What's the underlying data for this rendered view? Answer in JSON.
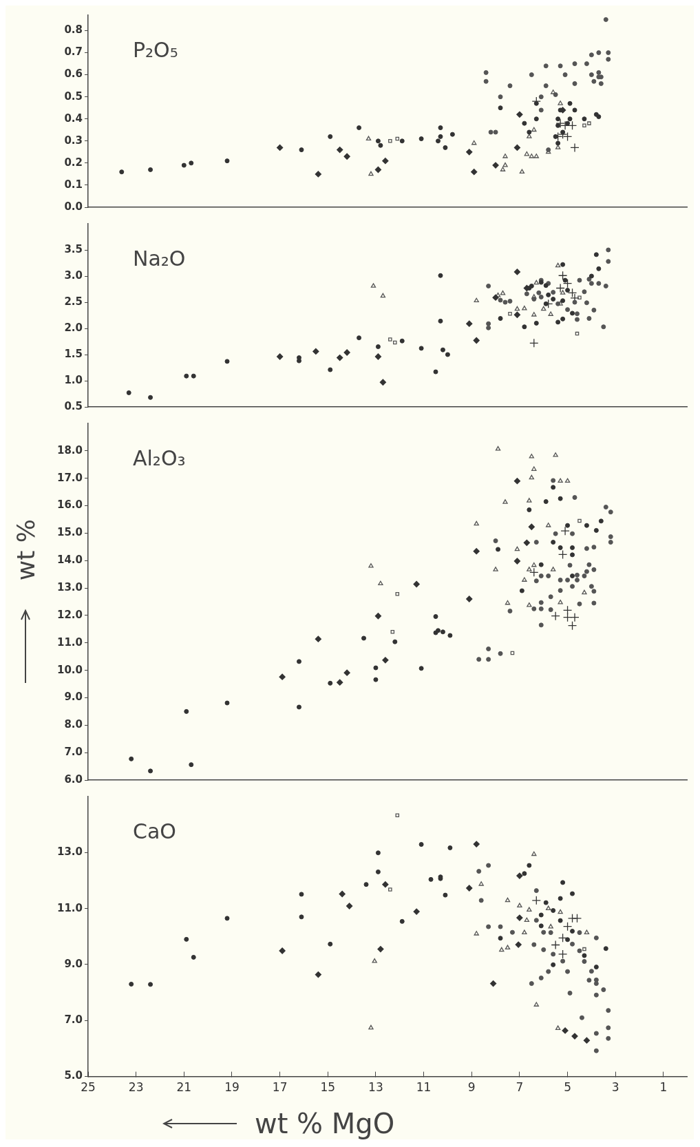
{
  "chart_data": [
    {
      "type": "scatter",
      "title": "P₂O₅",
      "xlim": [
        25,
        0
      ],
      "xticks": [
        25,
        23,
        21,
        19,
        17,
        15,
        13,
        11,
        9,
        7,
        5,
        3,
        1
      ],
      "ylim": [
        0,
        0.87
      ],
      "yticks": [
        {
          "value": 0,
          "label": "0.0"
        },
        {
          "value": 0.1,
          "label": "0.1"
        },
        {
          "value": 0.2,
          "label": "0.2"
        },
        {
          "value": 0.3,
          "label": "0.3"
        },
        {
          "value": 0.4,
          "label": "0.4"
        },
        {
          "value": 0.5,
          "label": "0.5"
        },
        {
          "value": 0.6,
          "label": "0.6"
        },
        {
          "value": 0.7,
          "label": "0.7"
        },
        {
          "value": 0.8,
          "label": "0.8"
        }
      ],
      "tick_labels": "y",
      "series": [
        {
          "marker": "circle",
          "color": "#333333",
          "x": [
            23.6,
            22.4,
            21.0,
            20.7,
            19.2,
            14.9,
            16.1,
            13.7,
            12.9,
            12.8,
            11.9,
            11.1,
            10.4,
            10.3,
            10.3,
            10.1,
            9.8,
            7.8,
            6.8,
            6.6,
            6.3,
            6.3,
            5.4,
            5.4,
            5.4,
            5.3,
            4.9,
            4.9,
            4.7,
            4.3,
            3.8,
            3.7,
            5.5,
            5.2,
            5.0
          ],
          "values": [
            0.16,
            0.17,
            0.19,
            0.2,
            0.21,
            0.32,
            0.26,
            0.36,
            0.3,
            0.28,
            0.3,
            0.31,
            0.3,
            0.36,
            0.32,
            0.27,
            0.33,
            0.45,
            0.38,
            0.34,
            0.47,
            0.4,
            0.4,
            0.37,
            0.29,
            0.44,
            0.4,
            0.47,
            0.44,
            0.4,
            0.42,
            0.41,
            0.32,
            0.34,
            0.38
          ]
        },
        {
          "marker": "diamond",
          "color": "#333333",
          "x": [
            17.0,
            15.4,
            14.5,
            14.2,
            12.9,
            12.6,
            9.1,
            8.9,
            8.0,
            7.0,
            7.1,
            5.2
          ],
          "values": [
            0.27,
            0.15,
            0.26,
            0.23,
            0.17,
            0.21,
            0.25,
            0.16,
            0.19,
            0.42,
            0.27,
            0.44
          ]
        },
        {
          "marker": "circle",
          "color": "#555555",
          "x": [
            8.4,
            8.4,
            7.8,
            7.4,
            8.2,
            8.0,
            6.5,
            5.9,
            5.9,
            5.3,
            5.1,
            4.7,
            4.7,
            4.2,
            4.0,
            3.7,
            3.4,
            3.3,
            3.3,
            3.7,
            3.7,
            3.9,
            3.6,
            4.0,
            3.6,
            5.5,
            6.1,
            6.1,
            5.8
          ],
          "values": [
            0.61,
            0.57,
            0.5,
            0.55,
            0.34,
            0.34,
            0.6,
            0.64,
            0.55,
            0.64,
            0.6,
            0.56,
            0.65,
            0.65,
            0.69,
            0.7,
            0.85,
            0.7,
            0.67,
            0.61,
            0.59,
            0.57,
            0.56,
            0.6,
            0.59,
            0.51,
            0.5,
            0.44,
            0.26
          ]
        },
        {
          "marker": "triangle",
          "color": "#555555",
          "x": [
            13.3,
            13.2,
            8.9,
            7.6,
            7.6,
            7.7,
            6.9,
            6.5,
            6.3,
            6.7,
            6.6,
            6.4,
            5.8,
            5.6,
            5.3,
            5.4
          ],
          "values": [
            0.31,
            0.15,
            0.29,
            0.23,
            0.19,
            0.17,
            0.16,
            0.23,
            0.23,
            0.24,
            0.32,
            0.35,
            0.25,
            0.52,
            0.47,
            0.27
          ]
        },
        {
          "marker": "cross",
          "color": "#333333",
          "x": [
            6.3,
            5.3,
            5.1,
            4.8,
            5.0,
            5.4,
            4.7,
            5.2
          ],
          "values": [
            0.48,
            0.38,
            0.37,
            0.37,
            0.32,
            0.32,
            0.27,
            0.33
          ]
        },
        {
          "marker": "square",
          "color": "#555555",
          "x": [
            12.4,
            12.1,
            4.3,
            4.1
          ],
          "values": [
            0.3,
            0.31,
            0.37,
            0.38
          ]
        }
      ]
    },
    {
      "type": "scatter",
      "title": "Na₂O",
      "xlim": [
        25,
        0
      ],
      "xticks": [
        25,
        23,
        21,
        19,
        17,
        15,
        13,
        11,
        9,
        7,
        5,
        3,
        1
      ],
      "ylim": [
        0.5,
        4.0
      ],
      "yticks": [
        {
          "value": 0.5,
          "label": "0.5"
        },
        {
          "value": 1.0,
          "label": "1.0"
        },
        {
          "value": 1.5,
          "label": "1.5"
        },
        {
          "value": 2.0,
          "label": "2.0"
        },
        {
          "value": 2.5,
          "label": "2.5"
        },
        {
          "value": 3.0,
          "label": "3.0"
        },
        {
          "value": 3.5,
          "label": "3.5"
        }
      ],
      "tick_labels": "y",
      "series": [
        {
          "marker": "circle",
          "color": "#333333",
          "x": [
            23.3,
            22.4,
            20.9,
            20.6,
            19.2,
            16.2,
            16.2,
            14.9,
            13.7,
            12.9,
            11.9,
            11.1,
            10.5,
            10.3,
            10.3,
            10.2,
            10.0,
            7.8,
            6.8,
            6.6,
            6.5,
            6.1,
            5.9,
            5.9,
            5.8,
            5.6,
            5.2,
            5.2,
            5.1,
            5.0,
            5.4,
            5.2,
            4.8,
            4.0,
            3.7,
            3.8,
            6.3
          ],
          "values": [
            0.77,
            0.68,
            1.09,
            1.09,
            1.37,
            1.44,
            1.38,
            1.21,
            1.82,
            1.65,
            1.76,
            1.62,
            1.17,
            2.14,
            3.01,
            1.59,
            1.5,
            2.19,
            2.03,
            2.77,
            2.81,
            2.88,
            2.82,
            2.47,
            2.64,
            2.56,
            2.53,
            3.22,
            2.92,
            2.73,
            2.12,
            2.18,
            2.29,
            3.0,
            3.14,
            3.41,
            2.1
          ]
        },
        {
          "marker": "diamond",
          "color": "#333333",
          "x": [
            17.0,
            15.5,
            14.5,
            14.2,
            12.9,
            12.7,
            9.1,
            8.8,
            8.0,
            7.1,
            6.7,
            7.1
          ],
          "values": [
            1.46,
            1.56,
            1.44,
            1.54,
            1.46,
            0.97,
            2.09,
            1.77,
            2.59,
            3.08,
            2.77,
            2.26
          ]
        },
        {
          "marker": "circle",
          "color": "#555555",
          "x": [
            8.3,
            8.3,
            8.3,
            7.8,
            7.6,
            7.4,
            6.7,
            6.4,
            6.2,
            6.1,
            5.8,
            5.6,
            5.4,
            5.0,
            4.7,
            4.6,
            4.5,
            4.3,
            4.2,
            4.1,
            4.0,
            3.5,
            3.4,
            3.3,
            3.3,
            3.7,
            4.6,
            3.9,
            6.1,
            4.1
          ],
          "values": [
            2.81,
            2.09,
            2.01,
            2.54,
            2.5,
            2.52,
            2.66,
            2.56,
            2.68,
            2.92,
            2.86,
            2.69,
            2.47,
            2.36,
            2.5,
            2.28,
            2.92,
            2.7,
            2.49,
            2.19,
            2.86,
            2.03,
            2.81,
            3.28,
            3.5,
            2.86,
            2.17,
            2.35,
            2.6,
            2.94
          ]
        },
        {
          "marker": "triangle",
          "color": "#555555",
          "x": [
            13.1,
            12.7,
            8.8,
            7.9,
            7.7,
            7.1,
            6.8,
            6.4,
            6.3,
            6.0,
            5.7,
            5.4,
            5.3,
            5.2,
            6.4
          ],
          "values": [
            2.81,
            2.62,
            2.53,
            2.63,
            2.67,
            2.37,
            2.38,
            2.6,
            2.87,
            2.37,
            2.27,
            3.2,
            2.47,
            2.68,
            2.26
          ]
        },
        {
          "marker": "cross",
          "color": "#333333",
          "x": [
            6.4,
            5.2,
            5.0,
            5.3,
            4.8,
            5.8,
            4.7
          ],
          "values": [
            1.72,
            3.01,
            2.86,
            2.77,
            2.68,
            2.47,
            2.58
          ]
        },
        {
          "marker": "square",
          "color": "#555555",
          "x": [
            12.4,
            12.2,
            7.4,
            4.6,
            4.5
          ],
          "values": [
            1.79,
            1.73,
            2.28,
            1.9,
            2.59
          ]
        }
      ]
    },
    {
      "type": "scatter",
      "title": "Al₂O₃",
      "ylabel": "wt %",
      "xlim": [
        25,
        0
      ],
      "xticks": [
        25,
        23,
        21,
        19,
        17,
        15,
        13,
        11,
        9,
        7,
        5,
        3,
        1
      ],
      "ylim": [
        6,
        19
      ],
      "yticks": [
        {
          "value": 6,
          "label": "6.0"
        },
        {
          "value": 7,
          "label": "7.0"
        },
        {
          "value": 8,
          "label": "8.0"
        },
        {
          "value": 9,
          "label": "9.0"
        },
        {
          "value": 10,
          "label": "10.0"
        },
        {
          "value": 11,
          "label": "11.0"
        },
        {
          "value": 12,
          "label": "12.0"
        },
        {
          "value": 13,
          "label": "13.0"
        },
        {
          "value": 14,
          "label": "14.0"
        },
        {
          "value": 15,
          "label": "15.0"
        },
        {
          "value": 16,
          "label": "16.0"
        },
        {
          "value": 17,
          "label": "17.0"
        },
        {
          "value": 18,
          "label": "18.0"
        }
      ],
      "tick_labels": "y",
      "series": [
        {
          "marker": "circle",
          "color": "#333333",
          "x": [
            23.2,
            22.4,
            20.9,
            20.7,
            19.2,
            16.2,
            16.2,
            14.9,
            13.5,
            13.0,
            13.0,
            12.2,
            11.1,
            10.5,
            10.5,
            10.4,
            10.2,
            9.9,
            5.6,
            5.3,
            5.9,
            6.6,
            5.0,
            4.2,
            3.6,
            3.8,
            5.6,
            5.3,
            4.8,
            4.8,
            6.1,
            4.8,
            6.9,
            7.9
          ],
          "values": [
            6.77,
            6.33,
            8.5,
            6.56,
            8.81,
            10.32,
            8.66,
            9.53,
            11.17,
            10.09,
            9.66,
            11.04,
            10.07,
            11.96,
            11.37,
            11.45,
            11.4,
            11.27,
            16.67,
            16.26,
            16.15,
            15.85,
            15.28,
            15.28,
            15.44,
            15.1,
            14.67,
            14.47,
            14.47,
            14.21,
            13.85,
            13.44,
            12.9,
            14.41
          ]
        },
        {
          "marker": "diamond",
          "color": "#333333",
          "x": [
            16.9,
            15.4,
            14.5,
            14.2,
            12.9,
            12.6,
            11.3,
            7.1,
            6.5,
            8.8,
            6.7,
            7.1,
            9.1
          ],
          "values": [
            9.76,
            11.14,
            9.56,
            9.91,
            11.98,
            10.37,
            13.14,
            16.9,
            15.23,
            14.34,
            14.65,
            13.98,
            12.6
          ]
        },
        {
          "marker": "circle",
          "color": "#555555",
          "x": [
            5.6,
            4.7,
            3.4,
            3.2,
            5.5,
            4.8,
            6.3,
            8.0,
            3.2,
            3.2,
            4.2,
            3.9,
            4.9,
            4.1,
            4.2,
            3.9,
            6.1,
            5.8,
            4.6,
            4.3,
            6.3,
            5.3,
            5.0,
            4.6,
            4.8,
            4.0,
            3.9,
            5.3,
            5.7,
            6.1,
            6.4,
            6.1,
            5.7,
            4.5,
            3.9,
            7.4,
            6.1,
            8.3,
            8.7,
            8.3,
            7.8
          ],
          "values": [
            16.92,
            16.3,
            15.95,
            15.77,
            14.98,
            14.98,
            14.67,
            14.72,
            14.87,
            14.67,
            14.44,
            14.49,
            13.83,
            13.85,
            13.6,
            13.67,
            13.44,
            13.44,
            13.47,
            13.44,
            13.26,
            13.29,
            13.29,
            13.29,
            13.06,
            13.06,
            12.88,
            12.91,
            12.68,
            12.47,
            12.24,
            12.24,
            12.21,
            12.42,
            12.45,
            12.16,
            11.65,
            10.78,
            10.4,
            10.4,
            10.61
          ]
        },
        {
          "marker": "triangle",
          "color": "#555555",
          "x": [
            13.2,
            12.8,
            7.9,
            6.5,
            5.5,
            6.4,
            6.5,
            5.3,
            5.0,
            7.6,
            6.6,
            8.8,
            5.8,
            7.1,
            8.0,
            6.6,
            6.4,
            5.6,
            6.8,
            4.3,
            7.5,
            6.6,
            5.3
          ],
          "values": [
            13.8,
            13.16,
            18.07,
            17.79,
            17.84,
            17.33,
            17.02,
            16.9,
            16.9,
            16.13,
            16.18,
            15.34,
            15.28,
            14.41,
            13.67,
            13.67,
            13.83,
            13.67,
            13.29,
            12.83,
            12.45,
            12.37,
            12.47
          ]
        },
        {
          "marker": "cross",
          "color": "#333333",
          "x": [
            5.2,
            5.1,
            6.4,
            5.5,
            5.0,
            5.0,
            4.7,
            4.8
          ],
          "values": [
            14.22,
            15.08,
            13.57,
            11.98,
            12.19,
            11.93,
            11.93,
            11.63
          ]
        },
        {
          "marker": "square",
          "color": "#555555",
          "x": [
            12.1,
            12.3,
            7.3,
            4.5
          ],
          "values": [
            12.78,
            11.4,
            10.63,
            15.45
          ]
        }
      ]
    },
    {
      "type": "scatter",
      "title": "CaO",
      "xlabel": "wt % MgO",
      "xlim": [
        25,
        0
      ],
      "xticks": [
        25,
        23,
        21,
        19,
        17,
        15,
        13,
        11,
        9,
        7,
        5,
        3,
        1
      ],
      "ylim": [
        5,
        15
      ],
      "yticks": [
        {
          "value": 5,
          "label": "5.0"
        },
        {
          "value": 7,
          "label": "7.0"
        },
        {
          "value": 9,
          "label": "9.0"
        },
        {
          "value": 11,
          "label": "11.0"
        },
        {
          "value": 13,
          "label": "13.0"
        }
      ],
      "series": [
        {
          "marker": "circle",
          "color": "#333333",
          "x": [
            23.2,
            22.4,
            20.9,
            20.6,
            19.2,
            16.1,
            16.1,
            14.9,
            13.4,
            12.9,
            12.9,
            11.9,
            11.1,
            10.7,
            10.3,
            10.3,
            10.1,
            9.9,
            6.6,
            6.8,
            5.2,
            4.8,
            5.3,
            5.9,
            5.6,
            6.1,
            5.3,
            6.1,
            4.8,
            5.0,
            7.8,
            4.3,
            3.4,
            3.8,
            5.6
          ],
          "values": [
            8.3,
            8.29,
            9.9,
            9.26,
            10.65,
            11.51,
            10.7,
            9.73,
            11.86,
            12.99,
            12.31,
            10.54,
            13.29,
            12.04,
            12.13,
            12.07,
            11.48,
            13.17,
            12.54,
            12.25,
            11.93,
            11.53,
            11.36,
            11.21,
            10.93,
            10.77,
            10.57,
            10.38,
            10.19,
            9.89,
            9.94,
            9.32,
            9.57,
            8.91,
            8.99
          ]
        },
        {
          "marker": "diamond",
          "color": "#333333",
          "x": [
            16.9,
            15.4,
            14.4,
            14.1,
            12.8,
            12.6,
            11.3,
            8.8,
            9.1,
            7.0,
            7.0,
            7.05,
            8.1,
            5.1,
            4.7,
            4.2
          ],
          "values": [
            9.49,
            8.64,
            11.52,
            11.09,
            9.55,
            11.86,
            10.89,
            13.3,
            11.73,
            12.17,
            10.67,
            9.71,
            8.32,
            6.64,
            6.44,
            6.29
          ]
        },
        {
          "marker": "circle",
          "color": "#555555",
          "x": [
            8.3,
            8.7,
            8.6,
            6.3,
            6.3,
            8.3,
            7.8,
            7.3,
            6.0,
            5.7,
            4.5,
            3.8,
            6.4,
            6.0,
            5.6,
            4.8,
            4.5,
            4.3,
            5.2,
            5.0,
            5.8,
            6.1,
            6.5,
            4.0,
            4.1,
            3.8,
            3.8,
            3.5,
            4.9,
            3.8,
            3.3,
            4.4,
            3.3,
            3.8,
            3.3,
            3.8
          ],
          "values": [
            12.54,
            12.33,
            11.29,
            11.64,
            10.58,
            10.35,
            10.35,
            10.15,
            10.15,
            10.14,
            10.14,
            9.95,
            9.71,
            9.53,
            9.37,
            9.73,
            9.49,
            9.11,
            9.12,
            8.75,
            8.75,
            8.52,
            8.32,
            8.76,
            8.44,
            8.45,
            8.32,
            8.1,
            7.98,
            7.91,
            7.36,
            7.1,
            6.74,
            6.54,
            6.36,
            5.92
          ]
        },
        {
          "marker": "triangle",
          "color": "#555555",
          "x": [
            13.05,
            13.2,
            6.4,
            8.6,
            7.5,
            7.0,
            6.6,
            5.8,
            5.3,
            6.7,
            8.8,
            6.8,
            5.7,
            4.2,
            7.75,
            7.5,
            6.3,
            5.4
          ],
          "values": [
            9.12,
            6.74,
            12.94,
            11.87,
            11.29,
            11.1,
            10.95,
            11.0,
            10.87,
            10.58,
            10.1,
            10.14,
            10.35,
            10.14,
            9.52,
            9.6,
            7.56,
            6.72
          ]
        },
        {
          "marker": "cross",
          "color": "#333333",
          "x": [
            6.3,
            4.8,
            5.0,
            5.2,
            5.5,
            5.2,
            4.6
          ],
          "values": [
            11.29,
            10.65,
            10.36,
            9.95,
            9.7,
            9.37,
            10.65
          ]
        },
        {
          "marker": "square",
          "color": "#555555",
          "x": [
            12.1,
            12.4,
            4.3
          ],
          "values": [
            14.33,
            11.68,
            9.55
          ]
        }
      ]
    }
  ]
}
